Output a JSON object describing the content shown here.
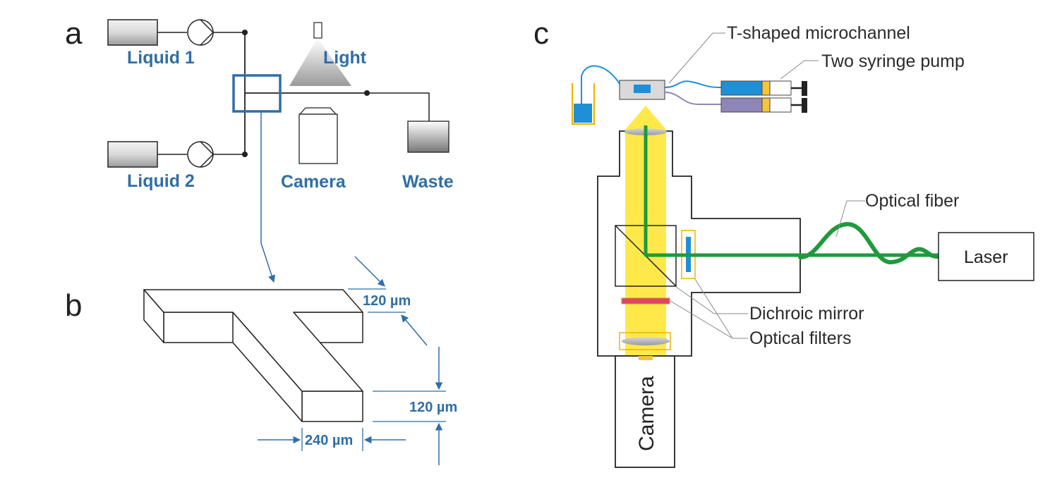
{
  "panels": {
    "a": {
      "letter": "a",
      "labels": {
        "liquid1": "Liquid 1",
        "liquid2": "Liquid 2",
        "light": "Light",
        "camera": "Camera",
        "waste": "Waste"
      }
    },
    "b": {
      "letter": "b",
      "dimensions": {
        "top_depth": "120 µm",
        "channel_height": "120 µm",
        "channel_width": "240 µm"
      }
    },
    "c": {
      "letter": "c",
      "labels": {
        "microchannel": "T-shaped microchannel",
        "syringe_pump": "Two syringe pump",
        "optical_fiber": "Optical fiber",
        "laser": "Laser",
        "dichroic_mirror": "Dichroic mirror",
        "optical_filters": "Optical filters",
        "camera": "Camera"
      }
    }
  },
  "colors": {
    "label_blue": "#2f6ea8",
    "beam_yellow": "#ffe94a",
    "fiber_green": "#1f9a3c",
    "filter_red": "#e0426a",
    "dye_blue": "#1f8fd6",
    "dye_purple": "#8f86b8"
  }
}
